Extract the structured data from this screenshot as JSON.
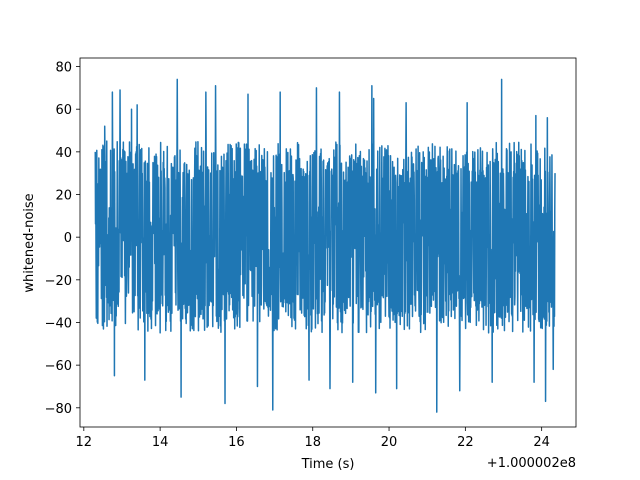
{
  "chart_data": {
    "type": "line",
    "title": "",
    "xlabel": "Time (s)",
    "ylabel": "whitened-noise",
    "x_offset_label": "+1.000002e8",
    "xlim": [
      11.9,
      24.9
    ],
    "ylim": [
      -89,
      84
    ],
    "x_ticks": [
      12,
      14,
      16,
      18,
      20,
      22,
      24
    ],
    "x_tick_labels": [
      "12",
      "14",
      "16",
      "18",
      "20",
      "22",
      "24"
    ],
    "y_ticks": [
      -80,
      -60,
      -40,
      -20,
      0,
      20,
      40,
      60,
      80
    ],
    "y_tick_labels": [
      "−80",
      "−60",
      "−40",
      "−20",
      "0",
      "20",
      "40",
      "60",
      "80"
    ],
    "grid": false,
    "series": [
      {
        "color": "#1f77b4",
        "x_range": [
          12.3,
          24.35
        ],
        "envelope": {
          "typical_abs": 40,
          "max": 74,
          "min": -82
        },
        "notable_peaks": [
          {
            "x": 12.55,
            "y": 52
          },
          {
            "x": 12.6,
            "y": 45
          },
          {
            "x": 12.75,
            "y": 68
          },
          {
            "x": 12.95,
            "y": 69
          },
          {
            "x": 13.25,
            "y": 60
          },
          {
            "x": 13.4,
            "y": 62
          },
          {
            "x": 14.45,
            "y": 74
          },
          {
            "x": 15.2,
            "y": 68
          },
          {
            "x": 15.45,
            "y": 71
          },
          {
            "x": 16.3,
            "y": 67
          },
          {
            "x": 17.15,
            "y": 68
          },
          {
            "x": 18.1,
            "y": 70
          },
          {
            "x": 18.7,
            "y": 68
          },
          {
            "x": 19.55,
            "y": 71
          },
          {
            "x": 19.6,
            "y": 65
          },
          {
            "x": 20.45,
            "y": 63
          },
          {
            "x": 21.25,
            "y": 73
          },
          {
            "x": 22.05,
            "y": 63
          },
          {
            "x": 22.95,
            "y": 74
          },
          {
            "x": 23.85,
            "y": 57
          },
          {
            "x": 24.15,
            "y": 56
          },
          {
            "x": 12.8,
            "y": -65
          },
          {
            "x": 13.6,
            "y": -67
          },
          {
            "x": 14.55,
            "y": -75
          },
          {
            "x": 15.7,
            "y": -78
          },
          {
            "x": 16.55,
            "y": -70
          },
          {
            "x": 16.95,
            "y": -81
          },
          {
            "x": 17.9,
            "y": -67
          },
          {
            "x": 18.45,
            "y": -71
          },
          {
            "x": 19.05,
            "y": -68
          },
          {
            "x": 19.65,
            "y": -73
          },
          {
            "x": 20.2,
            "y": -71
          },
          {
            "x": 21.25,
            "y": -82
          },
          {
            "x": 21.85,
            "y": -72
          },
          {
            "x": 22.7,
            "y": -68
          },
          {
            "x": 23.8,
            "y": -68
          },
          {
            "x": 24.1,
            "y": -77
          },
          {
            "x": 24.3,
            "y": -62
          }
        ]
      }
    ]
  }
}
